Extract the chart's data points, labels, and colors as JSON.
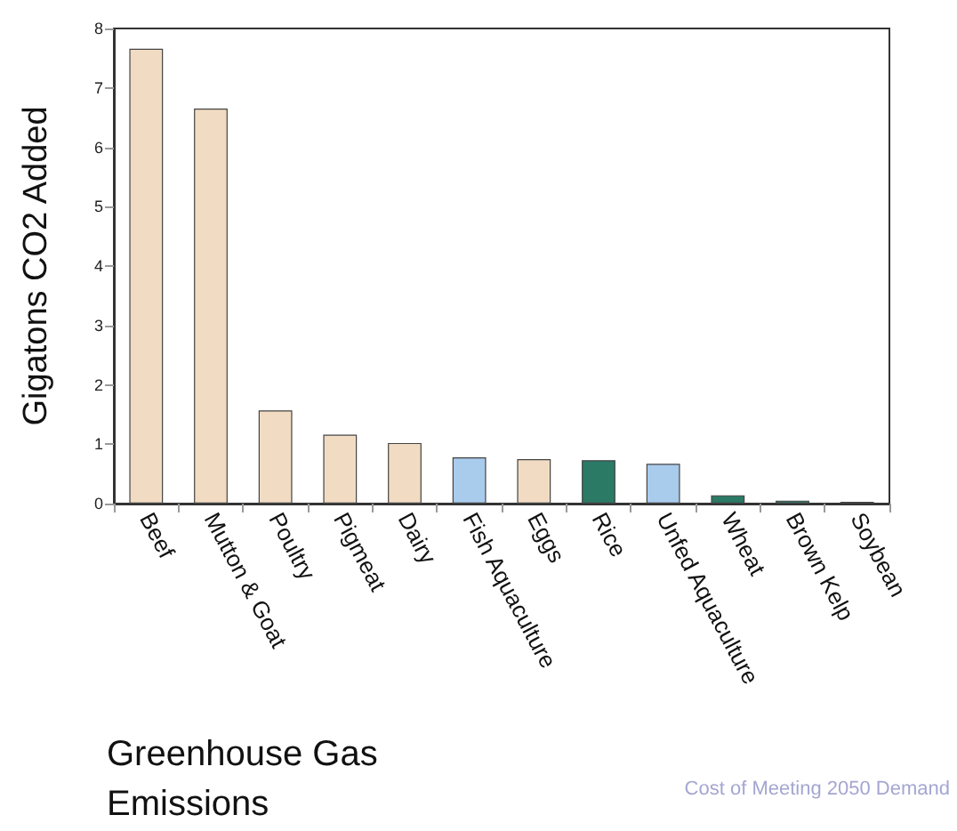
{
  "chart_data": {
    "type": "bar",
    "title": "Greenhouse Gas Emissions",
    "ylabel": "Gigatons CO2 Added",
    "annotations": [
      "Cost of Meeting 2050 Demand"
    ],
    "categories": [
      "Beef",
      "Mutton & Goat",
      "Poultry",
      "Pigmeat",
      "Dairy",
      "Fish Aquaculture",
      "Eggs",
      "Rice",
      "Unfed Aquaculture",
      "Wheat",
      "Brown Kelp",
      "Soybean"
    ],
    "values": [
      7.66,
      6.65,
      1.57,
      1.16,
      1.02,
      0.78,
      0.75,
      0.73,
      0.67,
      0.14,
      0.05,
      0.03
    ],
    "colors": [
      "#f1dcc3",
      "#f1dcc3",
      "#f1dcc3",
      "#f1dcc3",
      "#f1dcc3",
      "#a9cbec",
      "#f1dcc3",
      "#2b7a66",
      "#a9cbec",
      "#2b7a66",
      "#2b7a66",
      "#2b7a66"
    ],
    "ylim": [
      0,
      8
    ],
    "yticks": [
      0,
      1,
      2,
      3,
      4,
      5,
      6,
      7,
      8
    ],
    "grid": false
  }
}
